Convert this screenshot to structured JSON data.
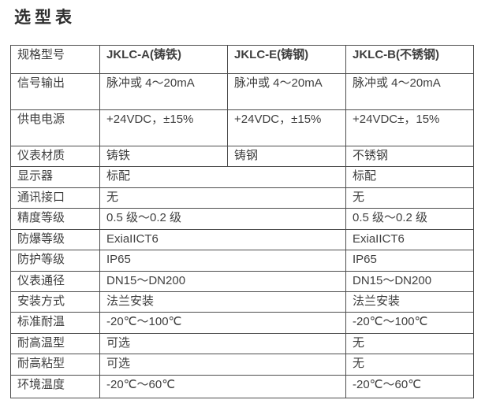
{
  "page": {
    "title": "选型表"
  },
  "colors": {
    "background": "#ffffff",
    "text": "#3f3f3f",
    "border": "#4d4d4d"
  },
  "table": {
    "columns": [
      "规格型号",
      "JKLC-A(铸铁)",
      "JKLC-E(铸钢)",
      "JKLC-B(不锈钢)"
    ],
    "rows": [
      {
        "label": "信号输出",
        "c1": "脉冲或 4～20mA",
        "c2": "脉冲或 4～20mA",
        "c3": "脉冲或 4～20mA"
      },
      {
        "label": "供电电源",
        "c1": "+24VDC，±15%",
        "c2": "+24VDC，±15%",
        "c3": "+24VDC±，15%"
      },
      {
        "label": "仪表材质",
        "c1": "铸铁",
        "c2": "铸钢",
        "c3": "不锈钢"
      },
      {
        "label": "显示器",
        "c12": "标配",
        "c3": "标配"
      },
      {
        "label": "通讯接口",
        "c12": "无",
        "c3": "无"
      },
      {
        "label": "精度等级",
        "c12": "0.5 级～0.2 级",
        "c3": "0.5 级～0.2 级"
      },
      {
        "label": "防爆等级",
        "c12": "ExiaIICT6",
        "c3": "ExiaIICT6"
      },
      {
        "label": "防护等级",
        "c12": "IP65",
        "c3": "IP65"
      },
      {
        "label": "仪表通径",
        "c12": "DN15～DN200",
        "c3": "DN15～DN200"
      },
      {
        "label": "安装方式",
        "c12": "法兰安装",
        "c3": "法兰安装"
      },
      {
        "label": "标准耐温",
        "c12": "-20℃～100℃",
        "c3": "-20℃～100℃"
      },
      {
        "label": "耐高温型",
        "c12": "可选",
        "c3": "无"
      },
      {
        "label": "耐高粘型",
        "c12": "可选",
        "c3": "无"
      },
      {
        "label": "环境温度",
        "c12": "-20℃～60℃",
        "c3": "-20℃～60℃"
      }
    ]
  }
}
